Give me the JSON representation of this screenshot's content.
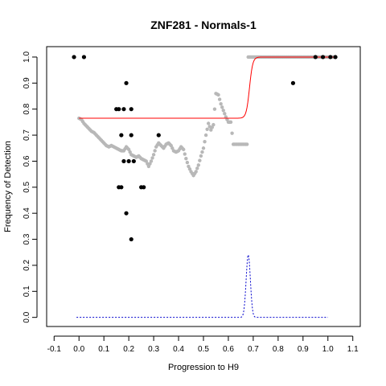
{
  "chart_data": {
    "type": "scatter",
    "title": "ZNF281 - Normals-1",
    "xlabel": "Progression to H9",
    "ylabel": "Frequency of Detection",
    "xlim": [
      -0.13,
      1.13
    ],
    "ylim": [
      -0.035,
      1.04
    ],
    "xticks": [
      "-0.1",
      "0.0",
      "0.1",
      "0.2",
      "0.3",
      "0.4",
      "0.5",
      "0.6",
      "0.7",
      "0.8",
      "0.9",
      "1.0",
      "1.1"
    ],
    "yticks": [
      "0.0",
      "0.1",
      "0.2",
      "0.3",
      "0.4",
      "0.5",
      "0.6",
      "0.7",
      "0.8",
      "0.9",
      "1.0"
    ],
    "grid": false,
    "colors": {
      "points": "#000000",
      "running_average": "#b8b8b8",
      "fit": "#ff0000",
      "density": "#0000cd"
    },
    "series": [
      {
        "style": "points",
        "points": [
          [
            -0.02,
            1.0
          ],
          [
            0.02,
            1.0
          ],
          [
            0.15,
            0.8
          ],
          [
            0.16,
            0.8
          ],
          [
            0.18,
            0.8
          ],
          [
            0.21,
            0.8
          ],
          [
            0.19,
            0.9
          ],
          [
            0.17,
            0.7
          ],
          [
            0.21,
            0.7
          ],
          [
            0.32,
            0.7
          ],
          [
            0.18,
            0.6
          ],
          [
            0.2,
            0.6
          ],
          [
            0.22,
            0.6
          ],
          [
            0.16,
            0.5
          ],
          [
            0.17,
            0.5
          ],
          [
            0.25,
            0.5
          ],
          [
            0.26,
            0.5
          ],
          [
            0.19,
            0.4
          ],
          [
            0.21,
            0.3
          ],
          [
            0.86,
            0.9
          ],
          [
            0.95,
            1.0
          ],
          [
            0.98,
            1.0
          ],
          [
            1.01,
            1.0
          ],
          [
            1.03,
            1.0
          ]
        ]
      },
      {
        "style": "running_average",
        "points": [
          [
            0.0,
            0.765
          ],
          [
            0.01,
            0.76
          ],
          [
            0.02,
            0.745
          ],
          [
            0.03,
            0.735
          ],
          [
            0.04,
            0.725
          ],
          [
            0.05,
            0.715
          ],
          [
            0.06,
            0.71
          ],
          [
            0.07,
            0.7
          ],
          [
            0.08,
            0.69
          ],
          [
            0.09,
            0.68
          ],
          [
            0.1,
            0.67
          ],
          [
            0.11,
            0.66
          ],
          [
            0.12,
            0.655
          ],
          [
            0.13,
            0.66
          ],
          [
            0.14,
            0.655
          ],
          [
            0.15,
            0.65
          ],
          [
            0.16,
            0.645
          ],
          [
            0.17,
            0.64
          ],
          [
            0.18,
            0.64
          ],
          [
            0.19,
            0.655
          ],
          [
            0.2,
            0.645
          ],
          [
            0.21,
            0.625
          ],
          [
            0.22,
            0.62
          ],
          [
            0.23,
            0.615
          ],
          [
            0.24,
            0.62
          ],
          [
            0.25,
            0.61
          ],
          [
            0.26,
            0.605
          ],
          [
            0.27,
            0.6
          ],
          [
            0.28,
            0.58
          ],
          [
            0.29,
            0.6
          ],
          [
            0.3,
            0.625
          ],
          [
            0.31,
            0.655
          ],
          [
            0.32,
            0.67
          ],
          [
            0.33,
            0.66
          ],
          [
            0.34,
            0.65
          ],
          [
            0.35,
            0.665
          ],
          [
            0.36,
            0.67
          ],
          [
            0.37,
            0.66
          ],
          [
            0.38,
            0.64
          ],
          [
            0.39,
            0.635
          ],
          [
            0.4,
            0.64
          ],
          [
            0.41,
            0.655
          ],
          [
            0.42,
            0.645
          ],
          [
            0.43,
            0.61
          ],
          [
            0.44,
            0.58
          ],
          [
            0.45,
            0.56
          ],
          [
            0.46,
            0.545
          ],
          [
            0.47,
            0.56
          ],
          [
            0.48,
            0.585
          ],
          [
            0.49,
            0.62
          ],
          [
            0.5,
            0.65
          ],
          [
            0.51,
            0.7
          ],
          [
            0.52,
            0.745
          ],
          [
            0.53,
            0.72
          ],
          [
            0.54,
            0.74
          ],
          [
            0.55,
            0.86
          ],
          [
            0.56,
            0.855
          ],
          [
            0.57,
            0.82
          ],
          [
            0.58,
            0.795
          ],
          [
            0.59,
            0.77
          ],
          [
            0.6,
            0.75
          ],
          [
            0.61,
            0.75
          ],
          [
            0.62,
            0.665
          ],
          [
            0.64,
            0.665
          ],
          [
            0.66,
            0.665
          ],
          [
            0.67,
            0.665
          ],
          [
            0.68,
            1.0
          ],
          [
            0.75,
            1.0
          ],
          [
            0.85,
            1.0
          ],
          [
            1.0,
            1.0
          ],
          [
            1.03,
            1.0
          ]
        ]
      },
      {
        "style": "fit",
        "curve": "logistic",
        "lower": 0.765,
        "upper": 1.0,
        "midpoint": 0.685,
        "x_range": [
          0.0,
          1.03
        ]
      },
      {
        "style": "density",
        "peak_x": 0.68,
        "peak_y": 0.24,
        "baseline": 0.0,
        "x_range": [
          -0.01,
          1.0
        ]
      }
    ]
  }
}
